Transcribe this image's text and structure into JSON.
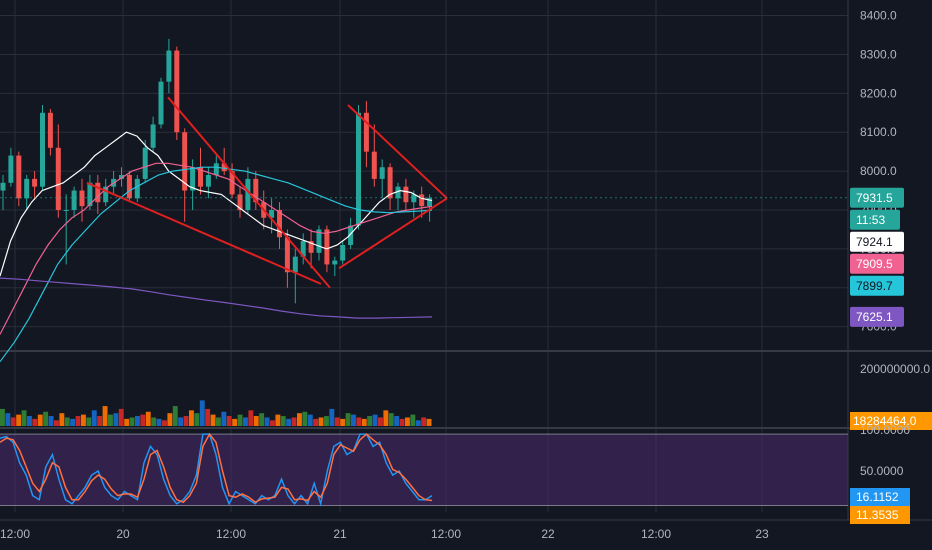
{
  "chart_data": {
    "type": "candlestick",
    "title": "",
    "x_axis": {
      "ticks": [
        "12:00",
        "20",
        "12:00",
        "21",
        "12:00",
        "22",
        "12:00",
        "23"
      ]
    },
    "price_axis": {
      "ticks": [
        "8400.0",
        "8300.0",
        "8200.0",
        "8100.0",
        "8000.0",
        "7900.0",
        "7800.0",
        "7700.0",
        "7600.0"
      ],
      "range": [
        7540,
        8440
      ]
    },
    "price_tags": [
      {
        "label": "7931.5",
        "color": "#26a69a",
        "text_color": "#ffffff",
        "role": "last-price"
      },
      {
        "label": "11:53",
        "color": "#26a69a",
        "text_color": "#ffffff",
        "role": "countdown"
      },
      {
        "label": "7924.1",
        "color": "#ffffff",
        "text_color": "#131722",
        "role": "ma-white"
      },
      {
        "label": "7909.5",
        "color": "#f06292",
        "text_color": "#ffffff",
        "role": "ma-pink"
      },
      {
        "label": "7899.7",
        "color": "#26c6da",
        "text_color": "#131722",
        "role": "ma-cyan"
      },
      {
        "label": "7625.1",
        "color": "#7e57c2",
        "text_color": "#ffffff",
        "role": "ma-purple"
      }
    ],
    "candles": [
      [
        7950,
        7990,
        7900,
        7970
      ],
      [
        7970,
        8060,
        7960,
        8040
      ],
      [
        8040,
        8050,
        7910,
        7930
      ],
      [
        7930,
        7990,
        7900,
        7980
      ],
      [
        7980,
        8000,
        7930,
        7960
      ],
      [
        7960,
        8170,
        7950,
        8150
      ],
      [
        8150,
        8160,
        8040,
        8060
      ],
      [
        8060,
        8120,
        7880,
        7900
      ],
      [
        7900,
        7940,
        7760,
        7900
      ],
      [
        7900,
        7960,
        7880,
        7950
      ],
      [
        7950,
        7980,
        7870,
        7910
      ],
      [
        7910,
        7990,
        7900,
        7970
      ],
      [
        7970,
        7990,
        7890,
        7920
      ],
      [
        7920,
        7980,
        7910,
        7960
      ],
      [
        7960,
        8000,
        7940,
        7980
      ],
      [
        7980,
        8010,
        7960,
        7990
      ],
      [
        7990,
        8000,
        7920,
        7930
      ],
      [
        7930,
        7990,
        7920,
        7980
      ],
      [
        7980,
        8080,
        7970,
        8060
      ],
      [
        8060,
        8140,
        8050,
        8120
      ],
      [
        8120,
        8240,
        8110,
        8230
      ],
      [
        8230,
        8340,
        8200,
        8310
      ],
      [
        8310,
        8320,
        8080,
        8100
      ],
      [
        8100,
        8110,
        7870,
        7950
      ],
      [
        7950,
        8030,
        7900,
        8010
      ],
      [
        8010,
        8060,
        7940,
        7960
      ],
      [
        7960,
        8010,
        7930,
        7990
      ],
      [
        7990,
        8040,
        7980,
        8020
      ],
      [
        8020,
        8060,
        7990,
        8000
      ],
      [
        8000,
        8020,
        7930,
        7940
      ],
      [
        7940,
        7960,
        7880,
        7900
      ],
      [
        7900,
        8010,
        7890,
        7980
      ],
      [
        7980,
        8000,
        7900,
        7920
      ],
      [
        7920,
        7950,
        7850,
        7880
      ],
      [
        7880,
        7930,
        7840,
        7900
      ],
      [
        7900,
        7920,
        7800,
        7830
      ],
      [
        7830,
        7850,
        7700,
        7740
      ],
      [
        7740,
        7800,
        7660,
        7780
      ],
      [
        7780,
        7840,
        7760,
        7820
      ],
      [
        7820,
        7850,
        7750,
        7790
      ],
      [
        7790,
        7860,
        7770,
        7850
      ],
      [
        7850,
        7860,
        7740,
        7760
      ],
      [
        7760,
        7780,
        7730,
        7770
      ],
      [
        7770,
        7820,
        7760,
        7810
      ],
      [
        7810,
        7880,
        7800,
        7860
      ],
      [
        7860,
        8170,
        7850,
        8150
      ],
      [
        8150,
        8180,
        8010,
        8050
      ],
      [
        8050,
        8120,
        7960,
        7980
      ],
      [
        7980,
        8030,
        7930,
        8010
      ],
      [
        8010,
        8020,
        7900,
        7930
      ],
      [
        7930,
        7970,
        7900,
        7960
      ],
      [
        7960,
        7980,
        7900,
        7920
      ],
      [
        7920,
        7950,
        7880,
        7940
      ],
      [
        7940,
        7960,
        7880,
        7910
      ],
      [
        7910,
        7940,
        7870,
        7931.5
      ]
    ],
    "moving_averages": [
      {
        "name": "",
        "color": "#ffffff",
        "values": [
          7730,
          7820,
          7880,
          7920,
          7950,
          7960,
          7970,
          7990,
          8010,
          8040,
          8060,
          8080,
          8100,
          8090,
          8060,
          8040,
          8000,
          7980,
          7960,
          7950,
          7945,
          7940,
          7920,
          7900,
          7880,
          7860,
          7850,
          7840,
          7830,
          7820,
          7810,
          7800,
          7810,
          7830,
          7860,
          7890,
          7920,
          7940,
          7950,
          7945,
          7930,
          7924.1
        ]
      },
      {
        "name": "",
        "color": "#f06292",
        "values": [
          7580,
          7640,
          7700,
          7760,
          7810,
          7850,
          7880,
          7900,
          7930,
          7960,
          7980,
          8000,
          8010,
          8020,
          8020,
          8015,
          8010,
          8000,
          7990,
          7980,
          7960,
          7940,
          7920,
          7900,
          7880,
          7860,
          7845,
          7840,
          7845,
          7855,
          7865,
          7875,
          7885,
          7895,
          7900,
          7905,
          7909.5
        ]
      },
      {
        "name": "",
        "color": "#26c6da",
        "values": [
          7510,
          7560,
          7620,
          7690,
          7760,
          7810,
          7850,
          7890,
          7920,
          7950,
          7970,
          7990,
          8000,
          8005,
          8010,
          8010,
          8005,
          8000,
          7990,
          7980,
          7970,
          7955,
          7940,
          7925,
          7910,
          7900,
          7895,
          7893,
          7895,
          7897,
          7899.7
        ]
      },
      {
        "name": "",
        "color": "#7e57c2",
        "values": [
          7725,
          7722,
          7718,
          7714,
          7710,
          7706,
          7702,
          7697,
          7690,
          7682,
          7675,
          7668,
          7662,
          7655,
          7648,
          7640,
          7633,
          7628,
          7625,
          7622,
          7622,
          7623,
          7624,
          7625.1
        ]
      }
    ],
    "volume": {
      "range": [
        0,
        260000000
      ],
      "ticks": [
        "200000000.0"
      ],
      "last_label": "18284464.0",
      "last_color": "#ff9800",
      "values": [
        60,
        45,
        30,
        40,
        55,
        35,
        25,
        40,
        50,
        35,
        20,
        45,
        30,
        25,
        35,
        40,
        30,
        55,
        35,
        70,
        40,
        45,
        60,
        25,
        30,
        35,
        40,
        50,
        30,
        25,
        20,
        45,
        70,
        30,
        35,
        55,
        45,
        90,
        60,
        40,
        30,
        50,
        35,
        25,
        40,
        30,
        55,
        35,
        45,
        30,
        20,
        40,
        35,
        25,
        30,
        45,
        50,
        40,
        25,
        30,
        35,
        60,
        30,
        25,
        45,
        40,
        30,
        25,
        35,
        40,
        30,
        55,
        45,
        35,
        25,
        30,
        40,
        20,
        30,
        25
      ],
      "colors": [
        "#2e7d32",
        "#1565c0",
        "#c62828",
        "#ef6c00"
      ]
    },
    "oscillator": {
      "range": [
        0,
        100
      ],
      "ticks": [
        "100.0000",
        "50.0000"
      ],
      "labels": [
        {
          "label": "16.1152",
          "color": "#2196f3"
        },
        {
          "label": "11.3535",
          "color": "#ff9800"
        }
      ],
      "k": [
        90,
        92,
        85,
        60,
        45,
        20,
        15,
        55,
        70,
        40,
        15,
        10,
        20,
        30,
        45,
        50,
        30,
        20,
        15,
        25,
        20,
        15,
        60,
        80,
        70,
        40,
        20,
        10,
        15,
        25,
        45,
        95,
        95,
        70,
        30,
        10,
        25,
        20,
        15,
        10,
        20,
        15,
        20,
        40,
        20,
        10,
        20,
        10,
        35,
        10,
        50,
        80,
        85,
        70,
        75,
        95,
        95,
        80,
        85,
        60,
        45,
        50,
        35,
        25,
        15,
        15,
        20
      ],
      "d": [
        85,
        90,
        88,
        75,
        55,
        35,
        25,
        40,
        60,
        55,
        30,
        15,
        15,
        25,
        38,
        45,
        40,
        28,
        20,
        22,
        22,
        18,
        40,
        70,
        75,
        55,
        30,
        15,
        12,
        20,
        35,
        80,
        95,
        85,
        50,
        20,
        18,
        22,
        18,
        12,
        16,
        17,
        18,
        30,
        28,
        15,
        16,
        14,
        25,
        18,
        35,
        70,
        82,
        78,
        74,
        88,
        95,
        88,
        82,
        70,
        52,
        48,
        40,
        30,
        20,
        15,
        14
      ],
      "band_upper": 95,
      "band_lower": 8
    },
    "annotations": {
      "channel_color": "#e02020",
      "lines": [
        {
          "from": [
            "20 05:00",
            8190
          ],
          "to": [
            "20 23:00",
            7700
          ]
        },
        {
          "from": [
            "19 20:00",
            7970
          ],
          "to": [
            "20 22:00",
            7710
          ]
        },
        {
          "from": [
            "21 01:00",
            8170
          ],
          "to": [
            "21 12:00",
            7930
          ]
        },
        {
          "from": [
            "21 00:00",
            7750
          ],
          "to": [
            "21 12:00",
            7930
          ]
        }
      ]
    }
  }
}
